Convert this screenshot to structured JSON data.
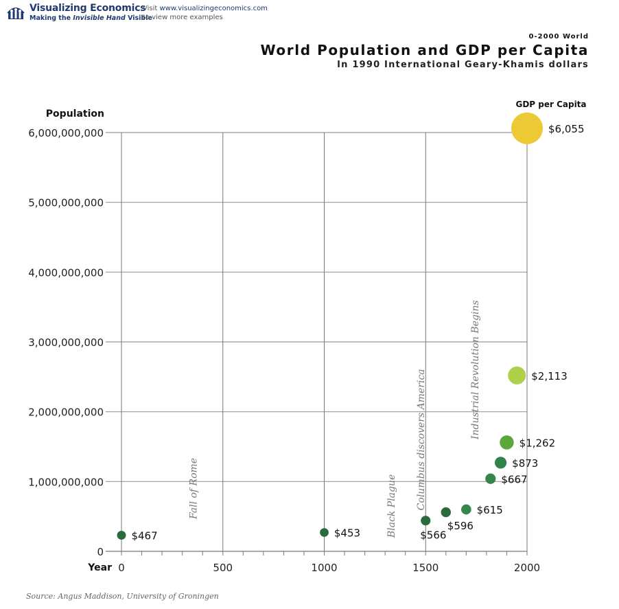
{
  "header": {
    "brand_title": "Visualizing Economics",
    "tagline_pre": "Making the ",
    "tagline_em": "Invisible Hand",
    "tagline_post": " Visible",
    "visit_prefix": "Visit ",
    "visit_url": "www.visualizingeconomics.com",
    "visit_line2": "to view more examples",
    "logo_icon": "people-house-icon",
    "brand_color": "#1f3a6e"
  },
  "titles": {
    "super_title": "0-2000 World",
    "main_title": "World Population and GDP per Capita",
    "sub_title": "In 1990 International Geary-Khamis dollars"
  },
  "footer": {
    "source": "Source: Angus Maddison, University of Groningen"
  },
  "chart_data": {
    "type": "scatter",
    "title": "World Population and GDP per Capita",
    "subtitle": "In 1990 International Geary-Khamis dollars",
    "xlabel": "Year",
    "ylabel": "Population",
    "size_label": "GDP per Capita",
    "xlim": [
      0,
      2000
    ],
    "ylim": [
      0,
      6000000000
    ],
    "x_ticks": [
      0,
      500,
      1000,
      1500,
      2000
    ],
    "x_tick_labels": [
      "0",
      "500",
      "1000",
      "1500",
      "2000"
    ],
    "x_minor_tick_step": 100,
    "y_ticks": [
      0,
      1000000000,
      2000000000,
      3000000000,
      4000000000,
      5000000000,
      6000000000
    ],
    "y_tick_labels": [
      "0",
      "1,000,000,000",
      "2,000,000,000",
      "3,000,000,000",
      "4,000,000,000",
      "5,000,000,000",
      "6,000,000,000"
    ],
    "grid": true,
    "points": [
      {
        "year": 0,
        "population": 230000000,
        "gdp_per_capita": 467,
        "label": "$467",
        "color": "#2a6a3c",
        "label_pos": "right"
      },
      {
        "year": 1000,
        "population": 270000000,
        "gdp_per_capita": 453,
        "label": "$453",
        "color": "#2a6a3c",
        "label_pos": "right"
      },
      {
        "year": 1500,
        "population": 440000000,
        "gdp_per_capita": 566,
        "label": "$566",
        "color": "#2a6a3c",
        "label_pos": "below"
      },
      {
        "year": 1600,
        "population": 560000000,
        "gdp_per_capita": 596,
        "label": "$596",
        "color": "#2a6a3c",
        "label_pos": "below-right"
      },
      {
        "year": 1700,
        "population": 600000000,
        "gdp_per_capita": 615,
        "label": "$615",
        "color": "#348748",
        "label_pos": "right"
      },
      {
        "year": 1820,
        "population": 1040000000,
        "gdp_per_capita": 667,
        "label": "$667",
        "color": "#348748",
        "label_pos": "right"
      },
      {
        "year": 1870,
        "population": 1270000000,
        "gdp_per_capita": 873,
        "label": "$873",
        "color": "#32834a",
        "label_pos": "right"
      },
      {
        "year": 1900,
        "population": 1560000000,
        "gdp_per_capita": 1262,
        "label": "$1,262",
        "color": "#5aa83a",
        "label_pos": "right"
      },
      {
        "year": 1950,
        "population": 2520000000,
        "gdp_per_capita": 2113,
        "label": "$2,113",
        "color": "#aed04a",
        "label_pos": "right"
      },
      {
        "year": 2000,
        "population": 6060000000,
        "gdp_per_capita": 6055,
        "label": "$6,055",
        "color": "#ebca35",
        "label_pos": "right"
      }
    ],
    "annotations": [
      {
        "text": "Fall of Rome",
        "year": 370,
        "population": 900000000
      },
      {
        "text": "Black Plague",
        "year": 1347,
        "population": 650000000
      },
      {
        "text": "Columbus discovers America",
        "year": 1492,
        "population": 1600000000
      },
      {
        "text": "Industrial Revolution Begins",
        "year": 1760,
        "population": 2600000000
      }
    ]
  }
}
